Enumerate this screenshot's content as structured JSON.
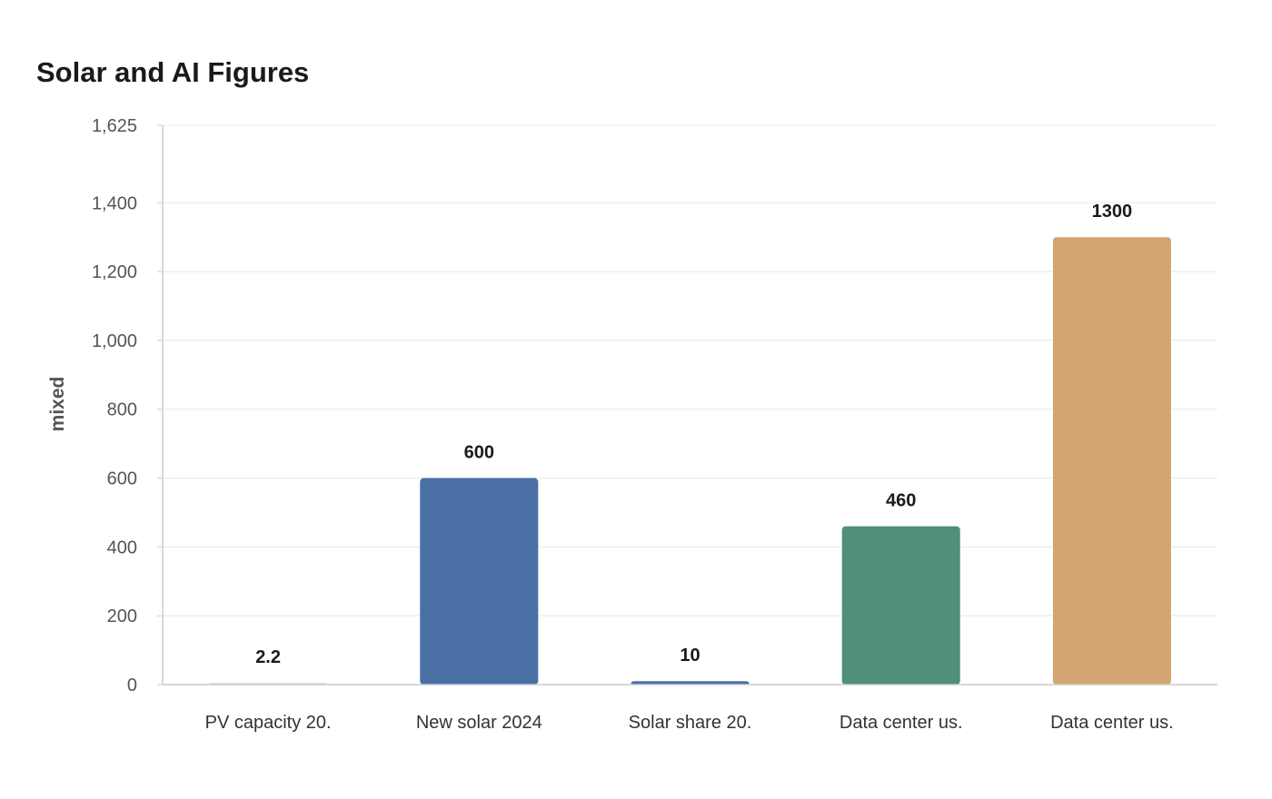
{
  "chart_data": {
    "type": "bar",
    "title": "Solar and AI Figures",
    "xlabel": "",
    "ylabel": "mixed",
    "categories": [
      "PV capacity 20.",
      "New solar 2024",
      "Solar share 20.",
      "Data center us.",
      "Data center us."
    ],
    "values": [
      2.2,
      600,
      10,
      460,
      1300
    ],
    "value_labels": [
      "2.2",
      "600",
      "10",
      "460",
      "1300"
    ],
    "colors": [
      "#e0e0e0",
      "#4a6fa5",
      "#4a6fa5",
      "#4f8f7b",
      "#d4a572"
    ],
    "ylim": [
      0,
      1625
    ],
    "yticks": [
      0,
      200,
      400,
      600,
      800,
      1000,
      1200,
      1400,
      1625
    ],
    "ytick_labels": [
      "0",
      "200",
      "400",
      "600",
      "800",
      "1,000",
      "1,200",
      "1,400",
      "1,625"
    ],
    "grid": true,
    "legend": "none"
  }
}
